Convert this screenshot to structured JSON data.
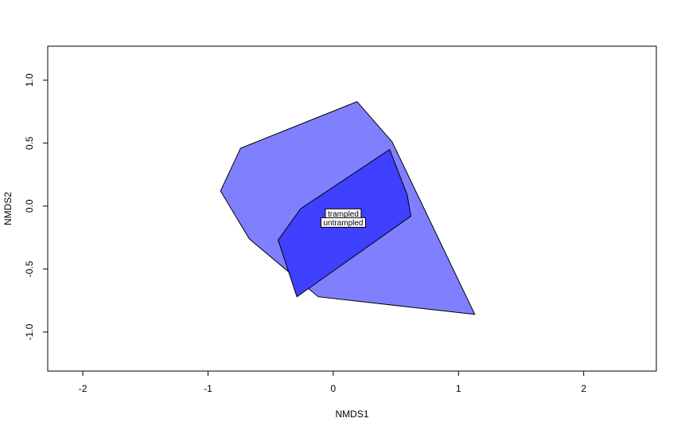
{
  "chart_data": {
    "type": "scatter",
    "title": "",
    "xlabel": "NMDS1",
    "ylabel": "NMDS2",
    "xlim": [
      -2.28,
      2.58
    ],
    "ylim": [
      -1.31,
      1.27
    ],
    "xticks": [
      -2,
      -1,
      0,
      1,
      2
    ],
    "yticks": [
      -1.0,
      -0.5,
      0.0,
      0.5,
      1.0
    ],
    "xtick_labels": [
      "-2",
      "-1",
      "0",
      "1",
      "2"
    ],
    "ytick_labels": [
      "-1.0",
      "-0.5",
      "0.0",
      "0.5",
      "1.0"
    ],
    "grid": false,
    "series": [
      {
        "name": "trampled",
        "color": "#8080ff",
        "polygon": [
          [
            0.19,
            0.83
          ],
          [
            0.47,
            0.51
          ],
          [
            1.13,
            -0.86
          ],
          [
            -0.12,
            -0.72
          ],
          [
            -0.67,
            -0.26
          ],
          [
            -0.9,
            0.12
          ],
          [
            -0.74,
            0.46
          ]
        ],
        "label_at": [
          0.08,
          -0.06
        ]
      },
      {
        "name": "untrampled",
        "color": "#4040ff",
        "polygon": [
          [
            0.45,
            0.45
          ],
          [
            0.59,
            0.09
          ],
          [
            0.62,
            -0.08
          ],
          [
            -0.29,
            -0.72
          ],
          [
            -0.44,
            -0.27
          ],
          [
            -0.26,
            -0.02
          ]
        ],
        "label_at": [
          0.08,
          -0.13
        ]
      }
    ]
  }
}
